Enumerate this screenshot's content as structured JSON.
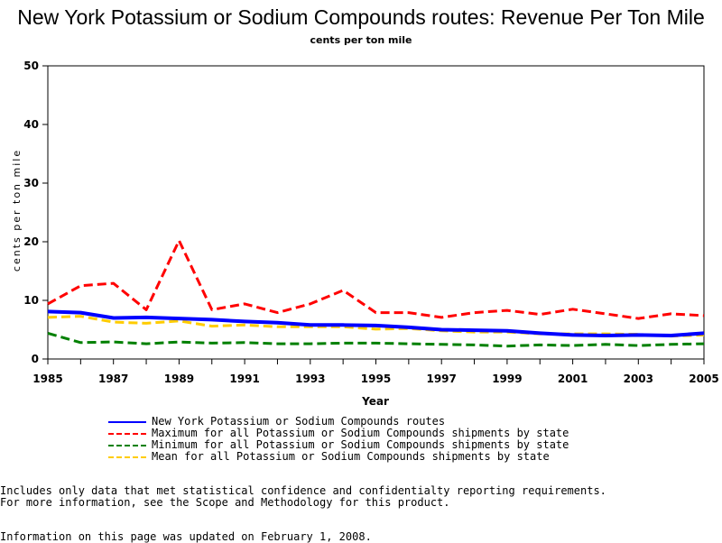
{
  "header": {
    "title": "New York Potassium or Sodium Compounds routes: Revenue Per Ton Mile",
    "subtitle": "cents per ton mile"
  },
  "footer": {
    "note1": "Includes only data that met statistical confidence and confidentialty reporting requirements.",
    "note2": "For more information, see the Scope and Methodology for this product.",
    "updated": "Information on this page was updated on February 1, 2008."
  },
  "chart_data": {
    "type": "line",
    "title": "New York Potassium or Sodium Compounds routes: Revenue Per Ton Mile",
    "subtitle": "cents per ton mile",
    "xlabel": "Year",
    "ylabel": "cents per ton mile",
    "xlim": [
      1985,
      2005
    ],
    "ylim": [
      0,
      50
    ],
    "xticks": [
      1985,
      1987,
      1989,
      1991,
      1993,
      1995,
      1997,
      1999,
      2001,
      2003,
      2005
    ],
    "yticks": [
      0,
      10,
      20,
      30,
      40,
      50
    ],
    "grid": false,
    "legend_position": "bottom",
    "x": [
      1985,
      1986,
      1987,
      1988,
      1989,
      1990,
      1991,
      1992,
      1993,
      1994,
      1995,
      1996,
      1997,
      1998,
      1999,
      2000,
      2001,
      2002,
      2003,
      2004,
      2005
    ],
    "series": [
      {
        "name": "New York Potassium or Sodium Compounds routes",
        "color": "#0000ff",
        "dash": "solid",
        "values": [
          8.1,
          7.9,
          7.0,
          7.1,
          6.9,
          6.7,
          6.4,
          6.2,
          5.8,
          5.8,
          5.7,
          5.4,
          5.0,
          4.9,
          4.8,
          4.4,
          4.1,
          4.0,
          4.1,
          4.0,
          4.4
        ]
      },
      {
        "name": "Maximum for all Potassium or Sodium Compounds shipments by state",
        "color": "#ff0000",
        "dash": "dashed",
        "values": [
          9.4,
          12.5,
          12.9,
          8.4,
          20.2,
          8.4,
          9.4,
          7.9,
          9.4,
          11.7,
          7.9,
          7.9,
          7.1,
          7.9,
          8.3,
          7.6,
          8.5,
          7.7,
          6.9,
          7.7,
          7.4
        ]
      },
      {
        "name": "Minimum for all Potassium or Sodium Compounds shipments by state",
        "color": "#008000",
        "dash": "dashed",
        "values": [
          4.4,
          2.8,
          2.9,
          2.6,
          2.9,
          2.7,
          2.8,
          2.6,
          2.6,
          2.7,
          2.7,
          2.6,
          2.5,
          2.4,
          2.2,
          2.4,
          2.3,
          2.5,
          2.3,
          2.5,
          2.6
        ]
      },
      {
        "name": "Mean for all Potassium or Sodium Compounds shipments by state",
        "color": "#ffcc00",
        "dash": "dashed",
        "values": [
          7.1,
          7.3,
          6.3,
          6.1,
          6.5,
          5.6,
          5.8,
          5.5,
          5.5,
          5.5,
          5.1,
          5.2,
          4.8,
          4.6,
          4.6,
          4.3,
          4.3,
          4.3,
          4.2,
          3.9,
          4.1
        ]
      }
    ]
  }
}
